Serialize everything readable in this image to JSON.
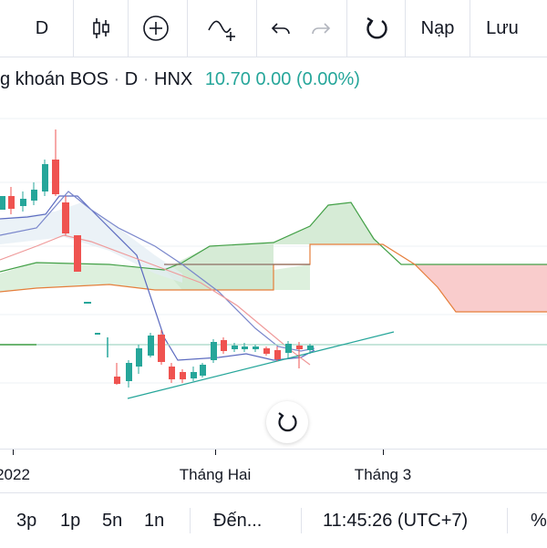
{
  "toolbar": {
    "interval": "D",
    "icons": [
      "candles-icon",
      "add-indicator-icon",
      "compare-icon",
      "undo-icon",
      "redo-icon",
      "reload-icon"
    ],
    "load_label": "Nạp",
    "save_label": "Lưu"
  },
  "legend": {
    "symbol_name": "g khoán BOS",
    "dot1": "·",
    "interval": "D",
    "dot2": "·",
    "exchange": "HNX",
    "price": "10.70",
    "change": "0.00",
    "change_pct": "(0.00%)"
  },
  "colors": {
    "up": "#26a69a",
    "down": "#ef5350",
    "cloud_bull": "#cfe8cf",
    "cloud_bear": "#f8c7c7",
    "price_line": "#a5d6c5"
  },
  "xaxis": {
    "labels": [
      "2022",
      "Tháng Hai",
      "Tháng 3"
    ]
  },
  "bottombar": {
    "ranges": [
      "3p",
      "1p",
      "5n",
      "1n"
    ],
    "goto_label": "Đến...",
    "clock": "11:45:26 (UTC+7)",
    "percent_label": "%"
  }
}
